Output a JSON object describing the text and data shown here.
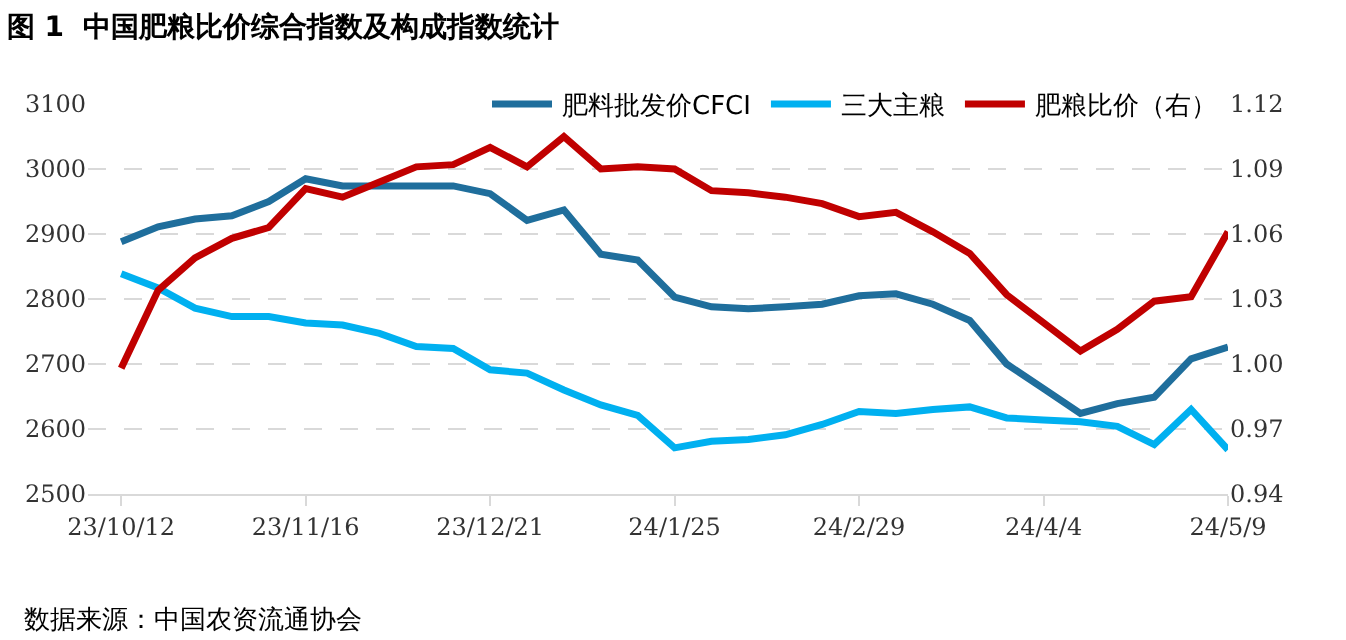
{
  "chart_data": {
    "type": "line",
    "title": "图 1  中国肥粮比价综合指数及构成指数统计",
    "categories": [
      "23/10/12",
      null,
      null,
      null,
      null,
      "23/11/16",
      null,
      null,
      null,
      null,
      "23/12/21",
      null,
      null,
      null,
      null,
      "24/1/25",
      null,
      null,
      null,
      null,
      "24/2/29",
      null,
      null,
      null,
      null,
      "24/4/4",
      null,
      null,
      null,
      null,
      "24/5/9"
    ],
    "series": [
      {
        "name": "肥料批发价CFCI",
        "color": "#1f6e9c",
        "values": [
          2888,
          2911,
          2923,
          2928,
          2950,
          2985,
          2974,
          2974,
          2974,
          2974,
          2962,
          2921,
          2937,
          2869,
          2860,
          2803,
          2788,
          2785,
          2788,
          2792,
          2805,
          2808,
          2792,
          2767,
          2700,
          2662,
          2624,
          2639,
          2649,
          2708,
          2726
        ]
      },
      {
        "name": "三大主粮",
        "color": "#00b0f0",
        "values": [
          2839,
          2817,
          2786,
          2773,
          2773,
          2763,
          2760,
          2747,
          2727,
          2724,
          2691,
          2686,
          2660,
          2637,
          2621,
          2571,
          2581,
          2584,
          2591,
          2607,
          2627,
          2624,
          2630,
          2634,
          2617,
          2614,
          2611,
          2604,
          2576,
          2630,
          2568
        ]
      },
      {
        "name": "肥粮比价（右）",
        "color": "#c00000",
        "axis": "y2",
        "values": [
          0.998,
          1.034,
          1.049,
          1.058,
          1.063,
          1.081,
          1.077,
          1.084,
          1.091,
          1.092,
          1.1,
          1.091,
          1.105,
          1.09,
          1.091,
          1.09,
          1.08,
          1.079,
          1.077,
          1.074,
          1.068,
          1.07,
          1.061,
          1.051,
          1.032,
          1.019,
          1.006,
          1.016,
          1.029,
          1.031,
          1.061
        ]
      }
    ],
    "ylim": [
      2500,
      3100
    ],
    "yticks": [
      2500,
      2600,
      2700,
      2800,
      2900,
      3000,
      3100
    ],
    "y2lim": [
      0.94,
      1.12
    ],
    "y2ticks": [
      {
        "value": 0.94,
        "label": "0.94"
      },
      {
        "value": 0.97,
        "label": "0.97"
      },
      {
        "value": 1.0,
        "label": "1.00"
      },
      {
        "value": 1.03,
        "label": "1.03"
      },
      {
        "value": 1.06,
        "label": "1.06"
      },
      {
        "value": 1.09,
        "label": "1.09"
      },
      {
        "value": 1.12,
        "label": "1.12"
      }
    ],
    "grid": "y",
    "legend": "top right",
    "marker": "none",
    "line_style": "solid",
    "annotations": [
      "数据来源：中国农资流通协会"
    ]
  }
}
